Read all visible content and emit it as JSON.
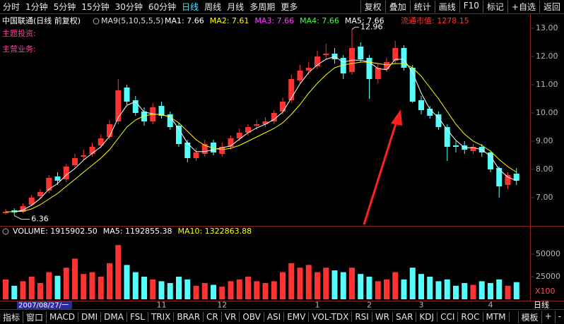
{
  "toolbar": {
    "periods": [
      "分时",
      "1分钟",
      "5分钟",
      "15分钟",
      "30分钟",
      "60分钟",
      "日线",
      "周线",
      "月线",
      "多周期",
      "更多"
    ],
    "active": 6,
    "actions": [
      "复权",
      "叠加",
      "统计",
      "画线",
      "F10",
      "标记",
      "+自选",
      "返回"
    ]
  },
  "bottom_tabs": {
    "tabs": [
      "指标",
      "窗口",
      "MACD",
      "DMI",
      "DMA",
      "FSL",
      "TRIX",
      "BRAR",
      "CR",
      "VR",
      "OBV",
      "ASI",
      "EMV",
      "VOL-TDX",
      "RSI",
      "WR",
      "SAR",
      "KDJ",
      "CCI",
      "ROC",
      "MTM"
    ],
    "actions": [
      "模板",
      "+",
      "-"
    ]
  },
  "chart_data": {
    "type": "candlestick",
    "title": "中国联通(日线 前复权)",
    "indicator": "MA9(5,10,5,5,5)",
    "ma_legend": [
      {
        "label": "MA1: 7.66",
        "color": "#ffffff"
      },
      {
        "label": "MA2: 7.61",
        "color": "#ffff00"
      },
      {
        "label": "MA3: 7.66",
        "color": "#ff40ff"
      },
      {
        "label": "MA4: 7.66",
        "color": "#40ff40"
      },
      {
        "label": "MA5: 7.66",
        "color": "#ffffff"
      }
    ],
    "market_value": "流通市值: 1278.15",
    "side_labels": [
      "主题投资:",
      "主营业务:"
    ],
    "cursor_date": "2007/08/27/一",
    "period_label": "日线",
    "categories": [
      null,
      null,
      null,
      null,
      null,
      null,
      null,
      null,
      null,
      null,
      null,
      null,
      null,
      null,
      null,
      null,
      null,
      null,
      "11",
      null,
      null,
      null,
      null,
      null,
      null,
      "12",
      null,
      null,
      null,
      null,
      null,
      null,
      null,
      null,
      null,
      null,
      "1",
      null,
      null,
      null,
      null,
      null,
      "2",
      null,
      null,
      null,
      null,
      null,
      "3",
      null,
      null,
      null,
      null,
      null,
      null,
      null,
      "4",
      null,
      null,
      null
    ],
    "open": [
      6.45,
      6.55,
      6.5,
      6.75,
      7.05,
      7.25,
      7.75,
      7.65,
      8.15,
      8.45,
      8.55,
      8.85,
      9.15,
      9.7,
      10.9,
      10.45,
      10.05,
      9.7,
      10.25,
      9.95,
      9.55,
      8.95,
      8.4,
      8.55,
      8.95,
      8.55,
      8.8,
      9.1,
      9.3,
      9.55,
      9.6,
      9.7,
      10.05,
      10.45,
      11.15,
      11.5,
      11.65,
      12.05,
      12.1,
      11.95,
      11.45,
      12.35,
      11.95,
      11.2,
      11.55,
      11.85,
      12.3,
      11.6,
      10.45,
      10.15,
      9.95,
      9.5,
      8.85,
      8.85,
      8.65,
      8.8,
      8.6,
      8.05,
      7.45,
      7.85
    ],
    "high": [
      6.6,
      6.62,
      6.8,
      7.1,
      7.3,
      7.8,
      7.9,
      8.2,
      8.55,
      8.7,
      8.95,
      9.25,
      9.75,
      11.2,
      11.0,
      10.6,
      10.2,
      10.35,
      10.4,
      10.05,
      9.65,
      9.05,
      8.75,
      9.05,
      9.05,
      8.95,
      9.2,
      9.45,
      9.6,
      9.75,
      9.85,
      10.1,
      10.55,
      11.35,
      11.7,
      11.8,
      12.2,
      12.45,
      12.3,
      12.05,
      12.96,
      12.5,
      12.05,
      11.75,
      11.95,
      12.55,
      12.4,
      11.7,
      10.6,
      10.25,
      10.05,
      9.6,
      9.0,
      9.0,
      8.9,
      8.9,
      8.65,
      8.1,
      7.9,
      8.05
    ],
    "low": [
      6.4,
      6.36,
      6.45,
      6.7,
      6.95,
      7.15,
      7.45,
      7.55,
      8.05,
      8.35,
      8.45,
      8.75,
      9.05,
      9.6,
      10.3,
      9.9,
      9.55,
      9.6,
      9.8,
      9.4,
      8.8,
      8.25,
      8.3,
      8.45,
      8.5,
      8.45,
      8.7,
      9.0,
      9.2,
      9.4,
      9.5,
      9.6,
      9.95,
      10.35,
      11.05,
      11.35,
      11.55,
      11.9,
      11.75,
      11.2,
      11.35,
      11.8,
      10.5,
      11.05,
      11.45,
      11.75,
      11.5,
      10.35,
      9.95,
      9.8,
      9.4,
      8.3,
      8.6,
      8.55,
      8.55,
      8.45,
      7.9,
      7.0,
      7.3,
      7.45
    ],
    "close": [
      6.5,
      6.48,
      6.7,
      7.0,
      7.2,
      7.7,
      7.6,
      8.1,
      8.4,
      8.5,
      8.8,
      9.1,
      9.6,
      10.8,
      10.4,
      10.0,
      9.7,
      10.2,
      9.9,
      9.5,
      8.9,
      8.4,
      8.6,
      8.9,
      8.6,
      8.8,
      9.1,
      9.3,
      9.5,
      9.6,
      9.7,
      10.0,
      10.4,
      11.2,
      11.5,
      11.6,
      12.0,
      12.1,
      11.9,
      11.4,
      12.3,
      11.9,
      11.2,
      11.6,
      11.8,
      12.3,
      11.6,
      10.4,
      10.1,
      9.9,
      9.5,
      8.8,
      8.8,
      8.7,
      8.8,
      8.6,
      8.0,
      7.4,
      7.8,
      7.6
    ],
    "up_color": "#ff3232",
    "down_color": "#54fcfc",
    "lines": [
      {
        "color": "#ffffff",
        "values": [
          6.5,
          6.5,
          6.56,
          6.73,
          6.97,
          7.3,
          7.5,
          7.8,
          8.03,
          8.33,
          8.57,
          8.8,
          9.17,
          9.83,
          10.27,
          10.4,
          10.03,
          9.97,
          9.93,
          9.87,
          9.43,
          8.93,
          8.63,
          8.63,
          8.7,
          8.77,
          8.83,
          9.07,
          9.3,
          9.47,
          9.6,
          9.77,
          10.03,
          10.53,
          11.03,
          11.43,
          11.7,
          11.9,
          12.0,
          11.8,
          11.87,
          11.87,
          11.8,
          11.57,
          11.53,
          11.9,
          11.9,
          11.43,
          10.7,
          10.13,
          9.83,
          9.4,
          9.03,
          8.77,
          8.77,
          8.7,
          8.47,
          8.0,
          7.73,
          7.6
        ]
      },
      {
        "color": "#ffff00",
        "values": [
          6.5,
          6.5,
          6.52,
          6.6,
          6.75,
          6.95,
          7.15,
          7.4,
          7.65,
          7.9,
          8.15,
          8.4,
          8.7,
          9.1,
          9.5,
          9.75,
          9.9,
          9.95,
          9.95,
          9.85,
          9.65,
          9.35,
          9.05,
          8.85,
          8.75,
          8.7,
          8.75,
          8.85,
          9.0,
          9.15,
          9.3,
          9.45,
          9.65,
          9.95,
          10.3,
          10.7,
          11.05,
          11.35,
          11.6,
          11.7,
          11.75,
          11.8,
          11.8,
          11.75,
          11.7,
          11.75,
          11.75,
          11.6,
          11.3,
          10.9,
          10.5,
          10.05,
          9.6,
          9.25,
          9.0,
          8.85,
          8.65,
          8.35,
          8.1,
          7.9
        ]
      }
    ],
    "ylim": [
      6.2,
      13.5
    ],
    "yticks": [
      {
        "value": 13,
        "label": "13.00"
      },
      {
        "value": 12,
        "label": "12.00"
      },
      {
        "value": 11,
        "label": "11.00"
      },
      {
        "value": 10,
        "label": "10.00"
      },
      {
        "value": 9,
        "label": "9.00"
      },
      {
        "value": 8,
        "label": "8.00"
      },
      {
        "value": 7,
        "label": "7.00"
      }
    ],
    "volume": {
      "legend": [
        {
          "label": "VOLUME: 1915902.50",
          "color": "#ffffff"
        },
        {
          "label": "MA5: 1192855.38",
          "color": "#ffffff"
        },
        {
          "label": "MA10: 1322863.88",
          "color": "#ffff00"
        }
      ],
      "unit": "X100",
      "values": [
        22000,
        15000,
        20000,
        25000,
        18000,
        30000,
        26000,
        35000,
        45000,
        28000,
        30000,
        25000,
        40000,
        60000,
        38000,
        30000,
        25000,
        22000,
        20000,
        18000,
        25000,
        22000,
        15000,
        18000,
        16000,
        14000,
        20000,
        22000,
        25000,
        20000,
        18000,
        20000,
        30000,
        40000,
        35000,
        38000,
        30000,
        35000,
        32000,
        30000,
        35000,
        28000,
        25000,
        20000,
        22000,
        30000,
        22000,
        35000,
        28000,
        25000,
        20000,
        22000,
        15000,
        18000,
        16000,
        20000,
        18000,
        22000,
        15000,
        19000
      ],
      "ylim": [
        0,
        65000
      ],
      "yticks": [
        50000,
        25000
      ]
    }
  }
}
